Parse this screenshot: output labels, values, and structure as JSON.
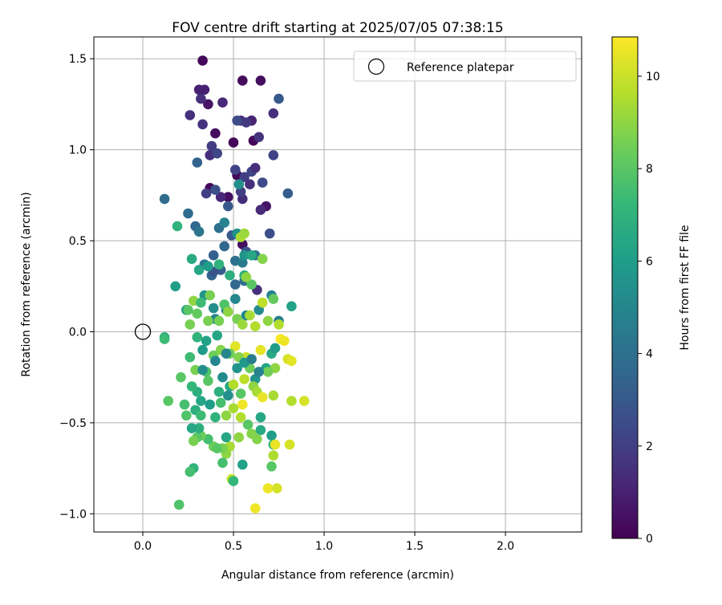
{
  "chart_data": {
    "type": "scatter",
    "title": "FOV centre drift starting at 2025/07/05 07:38:15",
    "xlabel": "Angular distance from reference (arcmin)",
    "ylabel": "Rotation from reference (arcmin)",
    "xlim": [
      -0.27,
      2.42
    ],
    "ylim": [
      -1.1,
      1.62
    ],
    "xticks": [
      0.0,
      0.5,
      1.0,
      1.5,
      2.0
    ],
    "xtick_labels": [
      "0.0",
      "0.5",
      "1.0",
      "1.5",
      "2.0"
    ],
    "yticks": [
      -1.0,
      -0.5,
      0.0,
      0.5,
      1.0,
      1.5
    ],
    "ytick_labels": [
      "−1.0",
      "−0.5",
      "0.0",
      "0.5",
      "1.0",
      "1.5"
    ],
    "grid": true,
    "legend": {
      "position": "top-right",
      "entries": [
        "Reference platepar"
      ]
    },
    "reference_point": {
      "x": 0.0,
      "y": 0.0
    },
    "colorbar": {
      "label": "Hours from first FF file",
      "range": [
        0,
        10.85
      ],
      "ticks": [
        0,
        2,
        4,
        6,
        8,
        10
      ],
      "tick_labels": [
        "0",
        "2",
        "4",
        "6",
        "8",
        "10"
      ],
      "colormap": "viridis"
    },
    "points": [
      [
        0.33,
        1.49,
        0.2
      ],
      [
        0.36,
        1.25,
        0.6
      ],
      [
        0.4,
        1.09,
        0.3
      ],
      [
        0.55,
        1.38,
        0.3
      ],
      [
        0.65,
        1.38,
        0.4
      ],
      [
        0.5,
        1.04,
        0.2
      ],
      [
        0.6,
        1.16,
        0.3
      ],
      [
        0.61,
        1.05,
        0.2
      ],
      [
        0.52,
        0.86,
        0.2
      ],
      [
        0.47,
        0.74,
        0.4
      ],
      [
        0.37,
        0.79,
        0.2
      ],
      [
        0.55,
        0.48,
        0.4
      ],
      [
        0.68,
        0.69,
        0.6
      ],
      [
        0.31,
        1.33,
        1.0
      ],
      [
        0.34,
        1.33,
        1.0
      ],
      [
        0.32,
        1.28,
        1.5
      ],
      [
        0.44,
        1.26,
        1.2
      ],
      [
        0.26,
        1.19,
        1.5
      ],
      [
        0.33,
        1.14,
        1.6
      ],
      [
        0.54,
        1.16,
        1.3
      ],
      [
        0.6,
        1.16,
        1.1
      ],
      [
        0.72,
        1.2,
        1.5
      ],
      [
        0.57,
        1.15,
        1.8
      ],
      [
        0.52,
        1.16,
        2.5
      ],
      [
        0.64,
        1.07,
        1.6
      ],
      [
        0.38,
        1.02,
        2.0
      ],
      [
        0.37,
        0.97,
        1.5
      ],
      [
        0.41,
        0.98,
        2.3
      ],
      [
        0.51,
        0.89,
        2.2
      ],
      [
        0.56,
        0.85,
        2.0
      ],
      [
        0.6,
        0.88,
        2.2
      ],
      [
        0.62,
        0.9,
        1.5
      ],
      [
        0.59,
        0.81,
        1.5
      ],
      [
        0.55,
        0.73,
        1.4
      ],
      [
        0.54,
        0.77,
        2.0
      ],
      [
        0.43,
        0.74,
        1.2
      ],
      [
        0.35,
        0.76,
        2.0
      ],
      [
        0.4,
        0.78,
        2.6
      ],
      [
        0.65,
        0.67,
        1.3
      ],
      [
        0.66,
        0.82,
        2.4
      ],
      [
        0.8,
        0.76,
        3.2
      ],
      [
        0.75,
        1.28,
        3.0
      ],
      [
        0.72,
        0.97,
        2.2
      ],
      [
        0.3,
        0.93,
        3.4
      ],
      [
        0.12,
        0.73,
        3.8
      ],
      [
        0.25,
        0.65,
        3.8
      ],
      [
        0.29,
        0.58,
        3.6
      ],
      [
        0.31,
        0.55,
        4.2
      ],
      [
        0.42,
        0.57,
        4.0
      ],
      [
        0.45,
        0.6,
        4.8
      ],
      [
        0.47,
        0.69,
        3.0
      ],
      [
        0.49,
        0.53,
        3.0
      ],
      [
        0.53,
        0.53,
        3.5
      ],
      [
        0.57,
        0.44,
        2.8
      ],
      [
        0.62,
        0.42,
        4.0
      ],
      [
        0.7,
        0.54,
        2.6
      ],
      [
        0.39,
        0.42,
        3.3
      ],
      [
        0.45,
        0.47,
        3.6
      ],
      [
        0.51,
        0.39,
        4.0
      ],
      [
        0.43,
        0.34,
        3.2
      ],
      [
        0.38,
        0.31,
        3.5
      ],
      [
        0.34,
        0.37,
        4.2
      ],
      [
        0.39,
        0.33,
        2.8
      ],
      [
        0.51,
        0.26,
        3.6
      ],
      [
        0.56,
        0.28,
        4.0
      ],
      [
        0.63,
        0.23,
        1.5
      ],
      [
        0.55,
        0.38,
        4.5
      ],
      [
        0.53,
        0.81,
        5.4
      ],
      [
        0.56,
        0.42,
        5.6
      ],
      [
        0.52,
        0.54,
        5.5
      ],
      [
        0.27,
        0.4,
        6.6
      ],
      [
        0.31,
        0.34,
        6.4
      ],
      [
        0.36,
        0.36,
        6.0
      ],
      [
        0.42,
        0.37,
        7.0
      ],
      [
        0.48,
        0.31,
        6.8
      ],
      [
        0.56,
        0.31,
        6.8
      ],
      [
        0.6,
        0.42,
        6.4
      ],
      [
        0.66,
        0.4,
        8.8
      ],
      [
        0.19,
        0.58,
        7.0
      ],
      [
        0.18,
        0.25,
        6.0
      ],
      [
        0.24,
        0.12,
        5.8
      ],
      [
        0.34,
        0.2,
        5.6
      ],
      [
        0.39,
        0.13,
        5.3
      ],
      [
        0.51,
        0.18,
        5.0
      ],
      [
        0.46,
        0.12,
        4.6
      ],
      [
        0.4,
        0.07,
        4.8
      ],
      [
        0.57,
        0.09,
        5.0
      ],
      [
        0.64,
        0.12,
        5.2
      ],
      [
        0.71,
        0.2,
        4.8
      ],
      [
        0.75,
        0.06,
        4.7
      ],
      [
        0.82,
        0.14,
        6.2
      ],
      [
        0.6,
        0.26,
        8.0
      ],
      [
        0.57,
        0.3,
        9.0
      ],
      [
        0.54,
        0.52,
        9.5
      ],
      [
        0.56,
        0.54,
        9.2
      ],
      [
        0.28,
        0.17,
        9.0
      ],
      [
        0.32,
        0.16,
        7.4
      ],
      [
        0.37,
        0.2,
        8.6
      ],
      [
        0.45,
        0.15,
        7.8
      ],
      [
        0.47,
        0.11,
        9.0
      ],
      [
        0.42,
        0.06,
        8.6
      ],
      [
        0.3,
        0.1,
        8.2
      ],
      [
        0.26,
        0.04,
        8.6
      ],
      [
        0.25,
        0.12,
        8.0
      ],
      [
        0.36,
        0.06,
        8.6
      ],
      [
        0.52,
        0.07,
        8.6
      ],
      [
        0.55,
        0.04,
        9.2
      ],
      [
        0.59,
        0.09,
        9.4
      ],
      [
        0.62,
        0.03,
        9.6
      ],
      [
        0.66,
        0.16,
        9.8
      ],
      [
        0.72,
        0.18,
        8.2
      ],
      [
        0.75,
        0.04,
        9.6
      ],
      [
        0.69,
        0.06,
        9.0
      ],
      [
        0.51,
        -0.08,
        10.4
      ],
      [
        0.57,
        -0.14,
        10.0
      ],
      [
        0.65,
        -0.1,
        10.5
      ],
      [
        0.76,
        -0.04,
        10.8
      ],
      [
        0.12,
        -0.03,
        6.8
      ],
      [
        0.12,
        -0.04,
        7.4
      ],
      [
        0.3,
        -0.03,
        7.0
      ],
      [
        0.35,
        -0.05,
        6.2
      ],
      [
        0.41,
        -0.02,
        6.4
      ],
      [
        0.33,
        -0.1,
        6.0
      ],
      [
        0.26,
        -0.14,
        7.4
      ],
      [
        0.29,
        -0.21,
        8.6
      ],
      [
        0.35,
        -0.22,
        7.8
      ],
      [
        0.39,
        -0.13,
        8.4
      ],
      [
        0.43,
        -0.1,
        8.8
      ],
      [
        0.48,
        -0.12,
        8.4
      ],
      [
        0.53,
        -0.14,
        8.8
      ],
      [
        0.59,
        -0.2,
        8.4
      ],
      [
        0.62,
        -0.26,
        5.6
      ],
      [
        0.68,
        -0.2,
        6.2
      ],
      [
        0.71,
        -0.12,
        6.5
      ],
      [
        0.73,
        -0.09,
        6.0
      ],
      [
        0.78,
        -0.05,
        10.6
      ],
      [
        0.8,
        -0.15,
        10.2
      ],
      [
        0.82,
        -0.16,
        10.4
      ],
      [
        0.73,
        -0.2,
        9.0
      ],
      [
        0.69,
        -0.22,
        8.5
      ],
      [
        0.61,
        -0.3,
        9.0
      ],
      [
        0.54,
        -0.34,
        8.0
      ],
      [
        0.48,
        -0.3,
        6.5
      ],
      [
        0.42,
        -0.33,
        6.8
      ],
      [
        0.36,
        -0.27,
        8.0
      ],
      [
        0.3,
        -0.33,
        6.8
      ],
      [
        0.27,
        -0.3,
        7.2
      ],
      [
        0.32,
        -0.38,
        6.4
      ],
      [
        0.37,
        -0.4,
        6.0
      ],
      [
        0.43,
        -0.39,
        7.6
      ],
      [
        0.47,
        -0.35,
        5.4
      ],
      [
        0.5,
        -0.29,
        9.6
      ],
      [
        0.56,
        -0.26,
        9.8
      ],
      [
        0.63,
        -0.33,
        9.4
      ],
      [
        0.66,
        -0.36,
        10.5
      ],
      [
        0.72,
        -0.35,
        9.4
      ],
      [
        0.82,
        -0.38,
        9.6
      ],
      [
        0.89,
        -0.38,
        10.2
      ],
      [
        0.21,
        -0.25,
        8.0
      ],
      [
        0.23,
        -0.4,
        7.6
      ],
      [
        0.14,
        -0.38,
        8.0
      ],
      [
        0.24,
        -0.46,
        7.8
      ],
      [
        0.29,
        -0.43,
        6.8
      ],
      [
        0.32,
        -0.46,
        7.4
      ],
      [
        0.4,
        -0.47,
        7.0
      ],
      [
        0.46,
        -0.46,
        9.0
      ],
      [
        0.5,
        -0.42,
        9.4
      ],
      [
        0.54,
        -0.47,
        9.6
      ],
      [
        0.55,
        -0.4,
        10.6
      ],
      [
        0.58,
        -0.51,
        8.0
      ],
      [
        0.65,
        -0.47,
        6.4
      ],
      [
        0.6,
        -0.56,
        8.8
      ],
      [
        0.65,
        -0.54,
        6.6
      ],
      [
        0.71,
        -0.57,
        6.0
      ],
      [
        0.72,
        -0.62,
        7.2
      ],
      [
        0.73,
        -0.62,
        10.5
      ],
      [
        0.81,
        -0.62,
        10.2
      ],
      [
        0.72,
        -0.68,
        9.5
      ],
      [
        0.71,
        -0.74,
        8.0
      ],
      [
        0.69,
        -0.86,
        10.6
      ],
      [
        0.74,
        -0.86,
        10.2
      ],
      [
        0.63,
        -0.59,
        8.8
      ],
      [
        0.62,
        -0.97,
        10.6
      ],
      [
        0.53,
        -0.58,
        9.0
      ],
      [
        0.48,
        -0.63,
        9.4
      ],
      [
        0.46,
        -0.67,
        9.0
      ],
      [
        0.44,
        -0.64,
        8.6
      ],
      [
        0.46,
        -0.58,
        6.4
      ],
      [
        0.39,
        -0.63,
        8.4
      ],
      [
        0.41,
        -0.64,
        8.0
      ],
      [
        0.36,
        -0.59,
        7.6
      ],
      [
        0.32,
        -0.57,
        8.4
      ],
      [
        0.3,
        -0.58,
        8.0
      ],
      [
        0.28,
        -0.6,
        8.6
      ],
      [
        0.31,
        -0.53,
        6.8
      ],
      [
        0.27,
        -0.53,
        6.4
      ],
      [
        0.44,
        -0.72,
        7.6
      ],
      [
        0.28,
        -0.75,
        7.0
      ],
      [
        0.26,
        -0.77,
        7.6
      ],
      [
        0.49,
        -0.81,
        9.8
      ],
      [
        0.5,
        -0.82,
        7.2
      ],
      [
        0.2,
        -0.95,
        7.8
      ],
      [
        0.55,
        -0.73,
        6.2
      ],
      [
        0.33,
        -0.21,
        5.4
      ],
      [
        0.4,
        -0.16,
        5.0
      ],
      [
        0.44,
        -0.25,
        5.2
      ],
      [
        0.52,
        -0.2,
        5.6
      ],
      [
        0.56,
        -0.17,
        5.8
      ],
      [
        0.6,
        -0.15,
        4.6
      ],
      [
        0.64,
        -0.22,
        4.8
      ],
      [
        0.46,
        -0.12,
        5.0
      ]
    ]
  }
}
